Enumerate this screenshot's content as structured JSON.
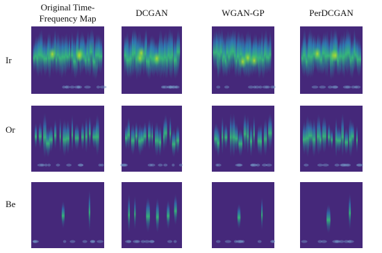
{
  "columns": [
    [
      "Original Time-",
      "Frequency Map"
    ],
    [
      "DCGAN"
    ],
    [
      "WGAN-GP"
    ],
    [
      "PerDCGAN"
    ]
  ],
  "rows": [
    "Ir",
    "Or",
    "Be"
  ]
}
